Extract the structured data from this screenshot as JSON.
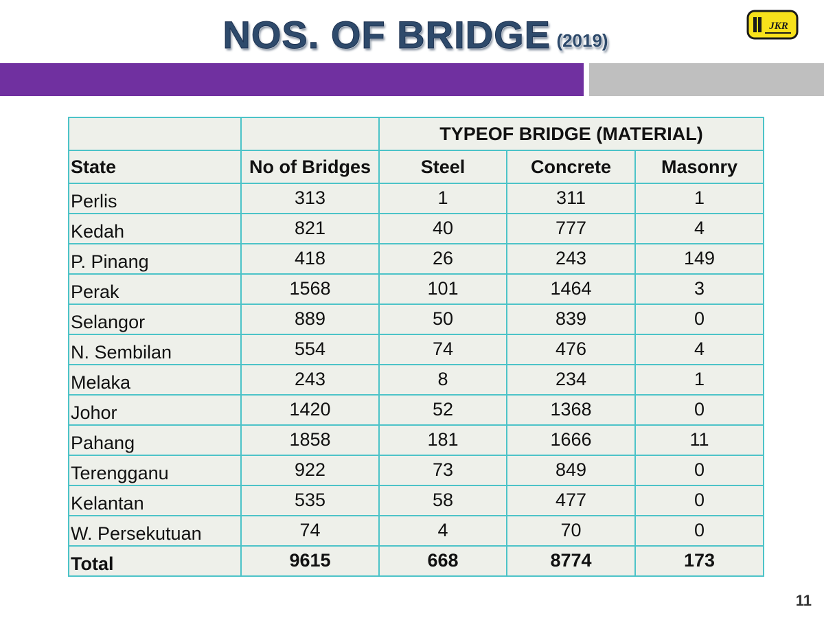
{
  "title": {
    "main": "NOS. OF BRIDGE",
    "year": "(2019)"
  },
  "logo": {
    "text": "JKR",
    "icon": "jkr-logo-icon"
  },
  "table": {
    "group_header": "TYPEOF BRIDGE (MATERIAL)",
    "columns": [
      "State",
      "No of Bridges",
      "Steel",
      "Concrete",
      "Masonry"
    ],
    "rows": [
      [
        "Perlis",
        "313",
        "1",
        "311",
        "1"
      ],
      [
        "Kedah",
        "821",
        "40",
        "777",
        "4"
      ],
      [
        "P. Pinang",
        "418",
        "26",
        "243",
        "149"
      ],
      [
        "Perak",
        "1568",
        "101",
        "1464",
        "3"
      ],
      [
        "Selangor",
        "889",
        "50",
        "839",
        "0"
      ],
      [
        "N. Sembilan",
        "554",
        "74",
        "476",
        "4"
      ],
      [
        "Melaka",
        "243",
        "8",
        "234",
        "1"
      ],
      [
        "Johor",
        "1420",
        "52",
        "1368",
        "0"
      ],
      [
        "Pahang",
        "1858",
        "181",
        "1666",
        "11"
      ],
      [
        "Terengganu",
        "922",
        "73",
        "849",
        "0"
      ],
      [
        "Kelantan",
        "535",
        "58",
        "477",
        "0"
      ],
      [
        "W. Persekutuan",
        "74",
        "4",
        "70",
        "0"
      ]
    ],
    "total": [
      "Total",
      "9615",
      "668",
      "8774",
      "173"
    ]
  },
  "page_number": "11",
  "colors": {
    "title": "#2e4a6b",
    "band_purple": "#7030a0",
    "band_gray": "#bfbfbf",
    "grid": "#4cc3c8",
    "cell_bg": "#eef0ea",
    "logo_yellow": "#f7e11b"
  }
}
